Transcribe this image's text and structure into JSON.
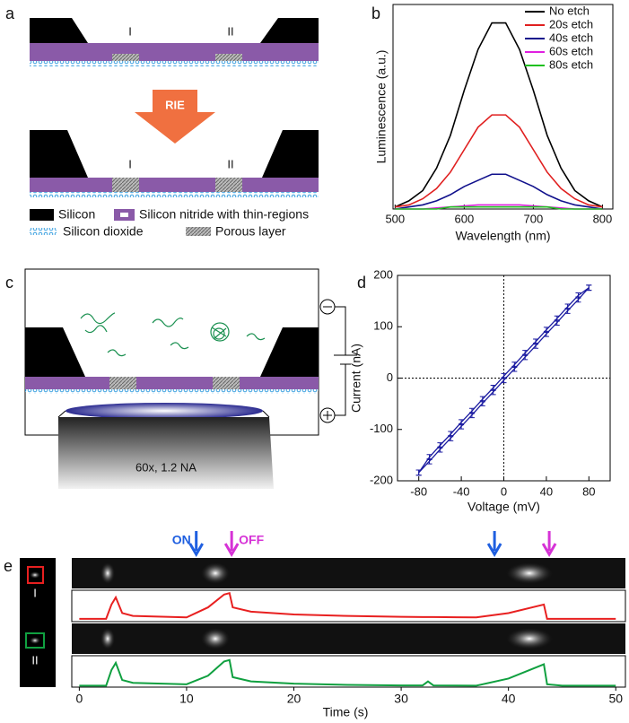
{
  "panel_labels": [
    "a",
    "b",
    "c",
    "d",
    "e"
  ],
  "panel_a": {
    "i_label": "I",
    "ii_label": "II",
    "i_label_after": "I",
    "ii_label_after": "II",
    "process": "RIE",
    "legend": [
      "Silicon",
      "Silicon nitride with thin-regions",
      "Silicon dioxide",
      "Porous layer"
    ]
  },
  "panel_c": {
    "objective": "60x, 1.2 NA"
  },
  "panel_e": {
    "i_label": "I",
    "ii_label": "II"
  },
  "chart_data": [
    {
      "type": "line",
      "xlabel": "Wavelength (nm)",
      "ylabel": "Luminescence (a.u.)",
      "x": [
        500,
        520,
        540,
        560,
        580,
        600,
        620,
        640,
        660,
        680,
        700,
        720,
        740,
        760,
        780,
        800
      ],
      "series": [
        {
          "name": "No etch",
          "color": "#000000",
          "values": [
            0.01,
            0.04,
            0.09,
            0.2,
            0.36,
            0.58,
            0.78,
            0.91,
            0.91,
            0.78,
            0.58,
            0.36,
            0.2,
            0.09,
            0.04,
            0.01
          ]
        },
        {
          "name": "20s etch",
          "color": "#e02020",
          "values": [
            0.01,
            0.02,
            0.05,
            0.1,
            0.18,
            0.29,
            0.4,
            0.46,
            0.46,
            0.4,
            0.29,
            0.18,
            0.1,
            0.05,
            0.02,
            0.01
          ]
        },
        {
          "name": "40s etch",
          "color": "#10108c",
          "values": [
            0,
            0.01,
            0.02,
            0.04,
            0.07,
            0.11,
            0.14,
            0.17,
            0.17,
            0.14,
            0.11,
            0.07,
            0.04,
            0.02,
            0.01,
            0
          ]
        },
        {
          "name": "60s etch",
          "color": "#e020e0",
          "values": [
            0,
            0,
            0,
            0.005,
            0.01,
            0.015,
            0.02,
            0.02,
            0.02,
            0.02,
            0.015,
            0.01,
            0.005,
            0,
            0,
            0
          ]
        },
        {
          "name": "80s etch",
          "color": "#20c020",
          "values": [
            0,
            0,
            0,
            0,
            0.01,
            0.01,
            0.01,
            0.01,
            0.01,
            0.01,
            0.01,
            0.01,
            0,
            0,
            0,
            0
          ]
        }
      ],
      "xlim": [
        497,
        815
      ],
      "xticks": [
        500,
        600,
        700,
        800
      ],
      "ylim": [
        0,
        1
      ],
      "legend": "upper right"
    },
    {
      "type": "errorline",
      "xlabel": "Voltage (mV)",
      "ylabel": "Current (nA)",
      "x": [
        -80,
        -70,
        -60,
        -50,
        -40,
        -30,
        -20,
        -10,
        0,
        10,
        20,
        30,
        40,
        50,
        60,
        70,
        80
      ],
      "series": [
        {
          "color": "#1a1aa0",
          "error": 5,
          "values": [
            -184,
            -162,
            -139,
            -117,
            -94,
            -72,
            -49,
            -27,
            -4,
            18,
            41,
            63,
            86,
            108,
            131,
            153,
            176
          ]
        },
        {
          "color": "#1a1aa0",
          "error": 5,
          "values": [
            -184,
            -154,
            -131,
            -109,
            -86,
            -64,
            -41,
            -19,
            4,
            26,
            49,
            71,
            94,
            116,
            139,
            161,
            176
          ]
        }
      ],
      "xlim": [
        -100,
        100
      ],
      "ylim": [
        -200,
        200
      ],
      "xticks": [
        -80,
        -40,
        0,
        40,
        80
      ],
      "yticks": [
        -200,
        -100,
        0,
        100,
        200
      ],
      "zero_lines": true
    },
    {
      "type": "trace",
      "xlabel": "Time (s)",
      "x": [
        0,
        2.5,
        3,
        3.4,
        4,
        5,
        10,
        12,
        13.5,
        14,
        14.3,
        16,
        20,
        25,
        30,
        32,
        32.5,
        33,
        37,
        40,
        43.3,
        43.6,
        45,
        50
      ],
      "series": [
        {
          "color": "#e82020",
          "values": [
            0.1,
            0.1,
            0.6,
            0.85,
            0.3,
            0.2,
            0.15,
            0.5,
            0.95,
            1.0,
            0.5,
            0.35,
            0.25,
            0.2,
            0.17,
            0.16,
            0.16,
            0.16,
            0.15,
            0.3,
            0.6,
            0.1,
            0.1,
            0.1
          ]
        },
        {
          "color": "#10a040",
          "values": [
            0.05,
            0.05,
            0.6,
            0.85,
            0.25,
            0.15,
            0.1,
            0.4,
            0.9,
            0.95,
            0.35,
            0.2,
            0.12,
            0.08,
            0.06,
            0.06,
            0.2,
            0.06,
            0.05,
            0.3,
            0.8,
            0.1,
            0.05,
            0.05
          ]
        }
      ],
      "xlim": [
        -0.7,
        50.9
      ],
      "xticks": [
        0,
        10,
        20,
        30,
        40,
        50
      ],
      "ylim": [
        0,
        1.1
      ],
      "arrows": [
        {
          "x": 10.9,
          "label": "ON",
          "color": "#1f5fe0"
        },
        {
          "x": 14.2,
          "label": "OFF",
          "color": "#d632d6"
        },
        {
          "x": 38.7,
          "color": "#1f5fe0"
        },
        {
          "x": 43.8,
          "color": "#d632d6"
        }
      ]
    }
  ]
}
